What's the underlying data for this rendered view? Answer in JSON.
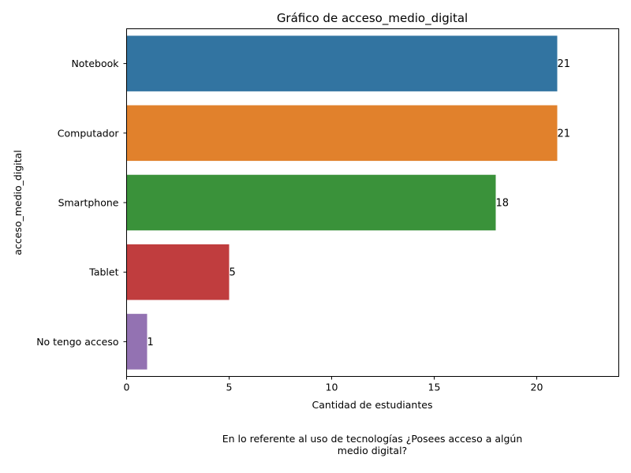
{
  "chart_data": {
    "type": "bar",
    "orientation": "horizontal",
    "title": "Gráfico de acceso_medio_digital",
    "xlabel": "Cantidad de estudiantes",
    "ylabel": "acceso_medio_digital",
    "categories": [
      "Notebook",
      "Computador",
      "Smartphone",
      "Tablet",
      "No tengo acceso"
    ],
    "values": [
      21,
      21,
      18,
      5,
      1
    ],
    "colors": [
      "#3274a1",
      "#e1812c",
      "#3a923a",
      "#c03d3e",
      "#9372b2"
    ],
    "xlim": [
      0,
      24
    ],
    "xticks": [
      0,
      5,
      10,
      15,
      20
    ],
    "grid": false,
    "data_labels": true
  },
  "caption": {
    "line1": "En lo referente al uso de tecnologías ¿Posees acceso a algún",
    "line2": "medio digital?"
  }
}
